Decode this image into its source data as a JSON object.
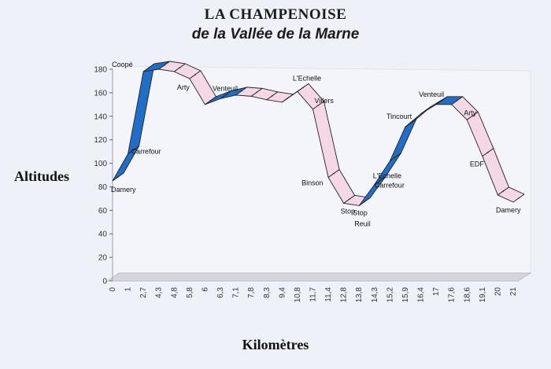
{
  "title": "LA CHAMPENOISE",
  "subtitle": "de la Vallée de la Marne",
  "chart_data": {
    "type": "line",
    "title": "LA CHAMPENOISE",
    "subtitle": "de la Vallée de la Marne",
    "xlabel": "Kilomètres",
    "ylabel": "Altitudes",
    "ylim": [
      0,
      180
    ],
    "y_ticks": [
      "0",
      "20",
      "40",
      "60",
      "80",
      "100",
      "120",
      "140",
      "160",
      "180"
    ],
    "categories": [
      "0",
      "1",
      "2,7",
      "4,3",
      "4,8",
      "5,8",
      "6",
      "6,3",
      "7,1",
      "7,8",
      "8,3",
      "9,4",
      "10,8",
      "11,7",
      "11,4",
      "12,8",
      "13,8",
      "14,3",
      "15,2",
      "15,9",
      "16,4",
      "17",
      "17,6",
      "18,6",
      "19,1",
      "20",
      "21"
    ],
    "values": [
      85,
      108,
      178,
      180,
      178,
      172,
      150,
      155,
      158,
      157,
      154,
      152,
      161,
      146,
      88,
      66,
      64,
      82,
      102,
      131,
      142,
      150,
      150,
      137,
      106,
      73,
      67
    ],
    "grid": false,
    "annotations": [
      {
        "text": "Damery",
        "index": 0
      },
      {
        "text": "Carrefour",
        "index": 1
      },
      {
        "text": "Coopé",
        "index": 2
      },
      {
        "text": "Arty",
        "index": 5
      },
      {
        "text": "Venteuil",
        "index": 7
      },
      {
        "text": "L'Echelle",
        "index": 12
      },
      {
        "text": "Villers",
        "index": 13
      },
      {
        "text": "Binson",
        "index": 14
      },
      {
        "text": "Stop",
        "index": 15
      },
      {
        "text": "Stop",
        "index": 16
      },
      {
        "text": "Reuil",
        "index": 16
      },
      {
        "text": "L'Echelle",
        "index": 17
      },
      {
        "text": "Carrefour",
        "index": 17
      },
      {
        "text": "Tincourt",
        "index": 19
      },
      {
        "text": "Venteuil",
        "index": 21
      },
      {
        "text": "Arty",
        "index": 23
      },
      {
        "text": "EDF",
        "index": 24
      },
      {
        "text": "Damery",
        "index": 26
      }
    ],
    "colors": {
      "rising": "#1f6fc8",
      "falling": "#f5d8e6",
      "outline": "#222222",
      "wall": "#f4f5fa",
      "floor": "#d3d6dc"
    }
  }
}
